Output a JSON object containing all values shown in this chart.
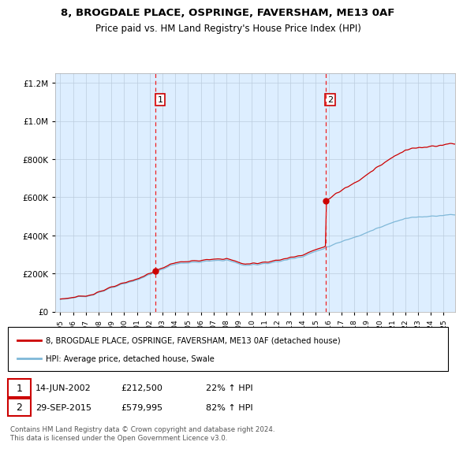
{
  "title1": "8, BROGDALE PLACE, OSPRINGE, FAVERSHAM, ME13 0AF",
  "title2": "Price paid vs. HM Land Registry's House Price Index (HPI)",
  "legend_line1": "8, BROGDALE PLACE, OSPRINGE, FAVERSHAM, ME13 0AF (detached house)",
  "legend_line2": "HPI: Average price, detached house, Swale",
  "sale1_date": "14-JUN-2002",
  "sale1_price": "£212,500",
  "sale1_hpi": "22% ↑ HPI",
  "sale1_year": 2002.45,
  "sale1_value": 212500,
  "sale2_date": "29-SEP-2015",
  "sale2_price": "£579,995",
  "sale2_hpi": "82% ↑ HPI",
  "sale2_year": 2015.75,
  "sale2_value": 579995,
  "hpi_color": "#7fb8d8",
  "price_color": "#cc0000",
  "bg_color": "#ddeeff",
  "grid_color": "#bbccdd",
  "vline_color": "#ee2222",
  "ylim_max": 1250000,
  "yticks": [
    0,
    200000,
    400000,
    600000,
    800000,
    1000000,
    1200000
  ],
  "footer": "Contains HM Land Registry data © Crown copyright and database right 2024.\nThis data is licensed under the Open Government Licence v3.0."
}
